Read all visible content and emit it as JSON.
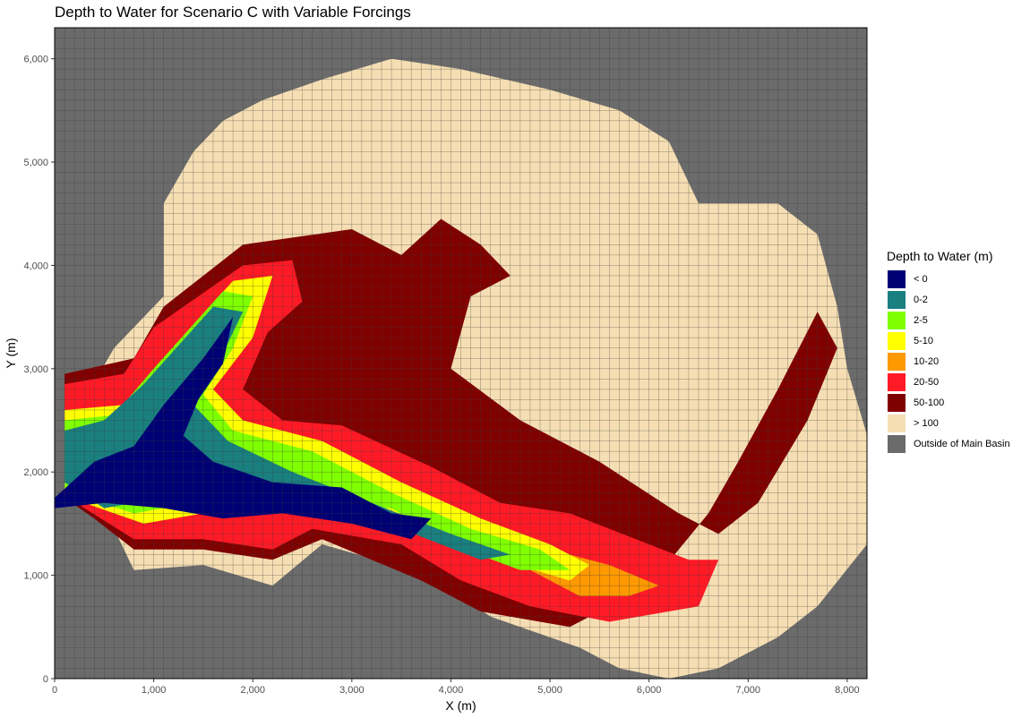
{
  "chart_data": {
    "type": "heatmap",
    "title": "Depth to Water for Scenario C with Variable Forcings",
    "xlabel": "X (m)",
    "ylabel": "Y (m)",
    "xlim": [
      0,
      8200
    ],
    "ylim": [
      0,
      6300
    ],
    "cell_size": 100,
    "x_ticks": [
      0,
      1000,
      2000,
      3000,
      4000,
      5000,
      6000,
      7000,
      8000
    ],
    "x_tick_labels": [
      "0",
      "1,000",
      "2,000",
      "3,000",
      "4,000",
      "5,000",
      "6,000",
      "7,000",
      "8,000"
    ],
    "y_ticks": [
      0,
      1000,
      2000,
      3000,
      4000,
      5000,
      6000
    ],
    "y_tick_labels": [
      "0",
      "1,000",
      "2,000",
      "3,000",
      "4,000",
      "5,000",
      "6,000"
    ],
    "legend": {
      "title": "Depth to Water (m)",
      "position": "right",
      "items": [
        {
          "label": "< 0",
          "color": "#000075"
        },
        {
          "label": "0-2",
          "color": "#1a7f7f"
        },
        {
          "label": "2-5",
          "color": "#7fff00"
        },
        {
          "label": "5-10",
          "color": "#ffff00"
        },
        {
          "label": "10-20",
          "color": "#ff9900"
        },
        {
          "label": "20-50",
          "color": "#ff1a26"
        },
        {
          "label": "50-100",
          "color": "#800000"
        },
        {
          "label": "> 100",
          "color": "#f5deb3"
        },
        {
          "label": "Outside of Main Basin",
          "color": "#6b6b6b"
        }
      ]
    },
    "basin_boundary": [
      [
        200,
        1750
      ],
      [
        600,
        1450
      ],
      [
        800,
        1050
      ],
      [
        1500,
        1100
      ],
      [
        2200,
        900
      ],
      [
        2700,
        1300
      ],
      [
        3800,
        1000
      ],
      [
        4400,
        600
      ],
      [
        5300,
        300
      ],
      [
        5700,
        100
      ],
      [
        6200,
        0
      ],
      [
        6700,
        100
      ],
      [
        7300,
        400
      ],
      [
        7700,
        700
      ],
      [
        8200,
        1300
      ],
      [
        8250,
        2200
      ],
      [
        8000,
        3000
      ],
      [
        7900,
        3600
      ],
      [
        7700,
        4300
      ],
      [
        7300,
        4600
      ],
      [
        6500,
        4600
      ],
      [
        6200,
        5200
      ],
      [
        5700,
        5500
      ],
      [
        5000,
        5700
      ],
      [
        4100,
        5900
      ],
      [
        3400,
        6000
      ],
      [
        2700,
        5800
      ],
      [
        2100,
        5600
      ],
      [
        1700,
        5400
      ],
      [
        1400,
        5100
      ],
      [
        1100,
        4600
      ],
      [
        1100,
        3700
      ],
      [
        600,
        3200
      ],
      [
        300,
        2700
      ]
    ],
    "zones": [
      {
        "class": "50-100",
        "polygon": [
          [
            100,
            2950
          ],
          [
            800,
            3100
          ],
          [
            1100,
            3600
          ],
          [
            1900,
            4200
          ],
          [
            3000,
            4350
          ],
          [
            3500,
            4100
          ],
          [
            3900,
            4450
          ],
          [
            4300,
            4200
          ],
          [
            4600,
            3900
          ],
          [
            4200,
            3700
          ],
          [
            4000,
            3000
          ],
          [
            4700,
            2500
          ],
          [
            5500,
            2100
          ],
          [
            6300,
            1600
          ],
          [
            6700,
            1400
          ],
          [
            7100,
            1700
          ],
          [
            7600,
            2500
          ],
          [
            7900,
            3200
          ],
          [
            7700,
            3550
          ],
          [
            7300,
            2800
          ],
          [
            6900,
            2100
          ],
          [
            6600,
            1600
          ],
          [
            6000,
            900
          ],
          [
            5200,
            500
          ],
          [
            4300,
            650
          ],
          [
            3700,
            950
          ],
          [
            2700,
            1350
          ],
          [
            2200,
            1150
          ],
          [
            1500,
            1250
          ],
          [
            800,
            1250
          ],
          [
            400,
            1550
          ],
          [
            100,
            1750
          ]
        ]
      },
      {
        "class": "20-50",
        "polygon": [
          [
            100,
            2850
          ],
          [
            700,
            2950
          ],
          [
            1000,
            3400
          ],
          [
            1900,
            4000
          ],
          [
            2400,
            4050
          ],
          [
            2500,
            3650
          ],
          [
            2150,
            3350
          ],
          [
            1900,
            2800
          ],
          [
            2300,
            2500
          ],
          [
            2900,
            2450
          ],
          [
            3800,
            2050
          ],
          [
            4500,
            1700
          ],
          [
            5200,
            1600
          ],
          [
            6000,
            1300
          ],
          [
            6400,
            1150
          ],
          [
            6700,
            1150
          ],
          [
            6500,
            700
          ],
          [
            5600,
            550
          ],
          [
            4800,
            700
          ],
          [
            4100,
            950
          ],
          [
            3500,
            1300
          ],
          [
            2600,
            1450
          ],
          [
            2200,
            1250
          ],
          [
            1500,
            1350
          ],
          [
            800,
            1350
          ],
          [
            300,
            1650
          ],
          [
            100,
            1800
          ]
        ]
      },
      {
        "class": "10-20",
        "polygon": [
          [
            4800,
            1050
          ],
          [
            5300,
            800
          ],
          [
            5800,
            800
          ],
          [
            6100,
            900
          ],
          [
            5600,
            1100
          ],
          [
            5000,
            1250
          ]
        ]
      },
      {
        "class": "5-10",
        "polygon": [
          [
            100,
            2600
          ],
          [
            700,
            2650
          ],
          [
            1100,
            3100
          ],
          [
            1800,
            3850
          ],
          [
            2200,
            3900
          ],
          [
            2000,
            3300
          ],
          [
            1600,
            2800
          ],
          [
            1900,
            2500
          ],
          [
            2700,
            2300
          ],
          [
            3500,
            1900
          ],
          [
            4300,
            1550
          ],
          [
            5000,
            1300
          ],
          [
            5400,
            1100
          ],
          [
            5200,
            950
          ],
          [
            4500,
            1150
          ],
          [
            3700,
            1550
          ],
          [
            2700,
            1750
          ],
          [
            2000,
            1700
          ],
          [
            1500,
            1600
          ],
          [
            900,
            1500
          ],
          [
            300,
            1700
          ],
          [
            100,
            1800
          ]
        ]
      },
      {
        "class": "2-5",
        "polygon": [
          [
            100,
            2500
          ],
          [
            600,
            2550
          ],
          [
            1000,
            3000
          ],
          [
            1700,
            3750
          ],
          [
            2000,
            3700
          ],
          [
            1800,
            3200
          ],
          [
            1500,
            2750
          ],
          [
            1800,
            2400
          ],
          [
            2600,
            2200
          ],
          [
            3400,
            1800
          ],
          [
            4200,
            1450
          ],
          [
            4900,
            1250
          ],
          [
            5200,
            1050
          ],
          [
            4700,
            1050
          ],
          [
            4000,
            1300
          ],
          [
            3400,
            1650
          ],
          [
            2600,
            1650
          ],
          [
            1900,
            1650
          ],
          [
            1400,
            1700
          ],
          [
            800,
            1600
          ],
          [
            300,
            1750
          ],
          [
            100,
            1850
          ]
        ]
      },
      {
        "class": "0-2",
        "polygon": [
          [
            100,
            2400
          ],
          [
            500,
            2500
          ],
          [
            900,
            2850
          ],
          [
            1600,
            3600
          ],
          [
            1900,
            3550
          ],
          [
            1650,
            3050
          ],
          [
            1400,
            2650
          ],
          [
            1750,
            2300
          ],
          [
            2400,
            2000
          ],
          [
            3200,
            1700
          ],
          [
            4000,
            1400
          ],
          [
            4600,
            1200
          ],
          [
            4300,
            1150
          ],
          [
            3500,
            1450
          ],
          [
            2600,
            1700
          ],
          [
            1800,
            1750
          ],
          [
            1100,
            1750
          ],
          [
            500,
            1650
          ],
          [
            100,
            1900
          ]
        ]
      },
      {
        "class": "< 0",
        "polygon": [
          [
            0,
            1750
          ],
          [
            400,
            2100
          ],
          [
            800,
            2250
          ],
          [
            1100,
            2650
          ],
          [
            1500,
            3100
          ],
          [
            1800,
            3500
          ],
          [
            1700,
            3050
          ],
          [
            1450,
            2700
          ],
          [
            1300,
            2350
          ],
          [
            1600,
            2100
          ],
          [
            2200,
            1900
          ],
          [
            2900,
            1850
          ],
          [
            3400,
            1600
          ],
          [
            3800,
            1550
          ],
          [
            3600,
            1350
          ],
          [
            3000,
            1500
          ],
          [
            2300,
            1600
          ],
          [
            1700,
            1550
          ],
          [
            1100,
            1650
          ],
          [
            500,
            1700
          ],
          [
            0,
            1650
          ]
        ]
      }
    ]
  }
}
